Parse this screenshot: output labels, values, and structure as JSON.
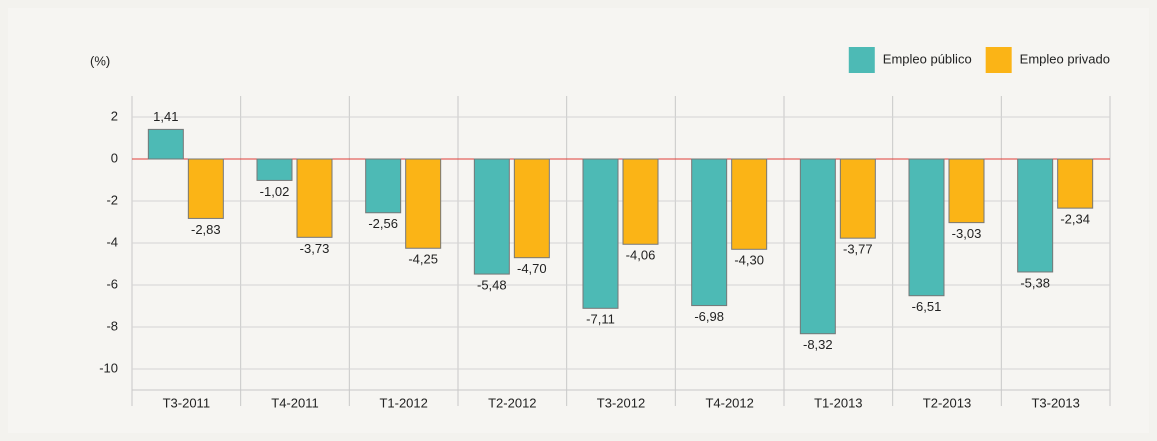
{
  "chart_data": {
    "type": "bar",
    "y_label": "(%)",
    "categories": [
      "T3-2011",
      "T4-2011",
      "T1-2012",
      "T2-2012",
      "T3-2012",
      "T4-2012",
      "T1-2013",
      "T2-2013",
      "T3-2013"
    ],
    "series": [
      {
        "name": "Empleo público",
        "color": "#4dbab5",
        "values": [
          1.41,
          -1.02,
          -2.56,
          -5.48,
          -7.11,
          -6.98,
          -8.32,
          -6.51,
          -5.38
        ],
        "value_labels": [
          "1,41",
          "-1,02",
          "-2,56",
          "-5,48",
          "-7,11",
          "-6,98",
          "-8,32",
          "-6,51",
          "-5,38"
        ]
      },
      {
        "name": "Empleo privado",
        "color": "#fbb416",
        "values": [
          -2.83,
          -3.73,
          -4.25,
          -4.7,
          -4.06,
          -4.3,
          -3.77,
          -3.03,
          -2.34
        ],
        "value_labels": [
          "-2,83",
          "-3,73",
          "-4,25",
          "-4,70",
          "-4,06",
          "-4,30",
          "-3,77",
          "-3,03",
          "-2,34"
        ]
      }
    ],
    "ylim": [
      -11,
      3
    ],
    "yticks": [
      2,
      0,
      -2,
      -4,
      -6,
      -8,
      -10
    ],
    "grid": true,
    "legend": "top-right"
  }
}
